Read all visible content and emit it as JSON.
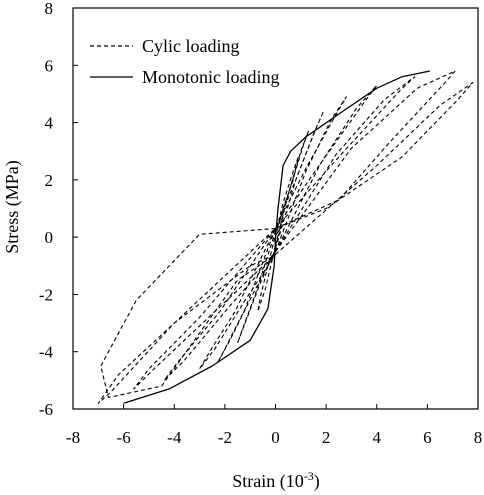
{
  "chart_data": {
    "type": "line",
    "xlabel": "Strain (10",
    "xlabel_sup": "-3",
    "xlabel_close": ")",
    "ylabel": "Stress (MPa)",
    "xlim": [
      -8,
      8
    ],
    "ylim": [
      -6,
      8
    ],
    "xticks": [
      "-8",
      "-6",
      "-4",
      "-2",
      "0",
      "2",
      "4",
      "6",
      "8"
    ],
    "yticks": [
      "-6",
      "-4",
      "-2",
      "0",
      "2",
      "4",
      "6",
      "8"
    ],
    "legend_position": "top-left",
    "series": [
      {
        "name": "Cylic loading",
        "style": "dashed",
        "loops": [
          [
            [
              0,
              0
            ],
            [
              0.3,
              1.0
            ],
            [
              0.7,
              2.0
            ],
            [
              0.9,
              2.8
            ],
            [
              0.7,
              2.3
            ],
            [
              0.3,
              1.2
            ],
            [
              0,
              0.1
            ],
            [
              -0.3,
              -1.0
            ],
            [
              -0.6,
              -2.1
            ],
            [
              -0.7,
              -2.6
            ],
            [
              -0.4,
              -1.8
            ],
            [
              0,
              -0.3
            ],
            [
              0.3,
              0.6
            ],
            [
              0,
              0
            ]
          ],
          [
            [
              0,
              -0.3
            ],
            [
              0.5,
              1.5
            ],
            [
              1.0,
              3.0
            ],
            [
              1.3,
              3.7
            ],
            [
              1.1,
              3.2
            ],
            [
              0.5,
              1.5
            ],
            [
              0,
              0.2
            ],
            [
              -0.8,
              -2.0
            ],
            [
              -1.3,
              -3.2
            ],
            [
              -1.5,
              -3.7
            ],
            [
              -1.2,
              -3.0
            ],
            [
              -0.6,
              -1.6
            ],
            [
              0,
              -0.4
            ]
          ],
          [
            [
              0,
              -0.4
            ],
            [
              0.8,
              2.0
            ],
            [
              1.5,
              3.6
            ],
            [
              1.9,
              4.4
            ],
            [
              1.6,
              3.8
            ],
            [
              0.8,
              2.0
            ],
            [
              0,
              0.3
            ],
            [
              -1.2,
              -2.5
            ],
            [
              -2.0,
              -3.9
            ],
            [
              -2.3,
              -4.4
            ],
            [
              -1.8,
              -3.6
            ],
            [
              -0.9,
              -2.0
            ],
            [
              0,
              -0.5
            ]
          ],
          [
            [
              0,
              -0.5
            ],
            [
              1.2,
              2.3
            ],
            [
              2.2,
              4.1
            ],
            [
              2.8,
              4.9
            ],
            [
              2.4,
              4.3
            ],
            [
              1.2,
              2.4
            ],
            [
              0,
              0.3
            ],
            [
              -1.6,
              -2.6
            ],
            [
              -2.6,
              -4.0
            ],
            [
              -3.0,
              -4.6
            ],
            [
              -2.4,
              -3.9
            ],
            [
              -1.2,
              -2.2
            ],
            [
              0,
              -0.6
            ]
          ],
          [
            [
              0,
              -0.5
            ],
            [
              1.8,
              2.6
            ],
            [
              3.2,
              4.5
            ],
            [
              4.0,
              5.3
            ],
            [
              3.5,
              4.7
            ],
            [
              1.8,
              2.6
            ],
            [
              0,
              0.3
            ],
            [
              -2.2,
              -2.6
            ],
            [
              -3.8,
              -4.3
            ],
            [
              -4.4,
              -5.0
            ],
            [
              -3.6,
              -4.3
            ],
            [
              -1.8,
              -2.4
            ],
            [
              0,
              -0.6
            ]
          ],
          [
            [
              0,
              -0.5
            ],
            [
              2.4,
              2.9
            ],
            [
              4.3,
              4.8
            ],
            [
              5.5,
              5.6
            ],
            [
              4.9,
              5.1
            ],
            [
              2.6,
              2.9
            ],
            [
              0,
              0.3
            ],
            [
              -3.0,
              -2.8
            ],
            [
              -5.0,
              -4.6
            ],
            [
              -5.6,
              -5.3
            ],
            [
              -4.8,
              -4.6
            ],
            [
              -2.4,
              -2.6
            ],
            [
              0,
              -0.6
            ]
          ],
          [
            [
              0,
              -0.5
            ],
            [
              3.0,
              3.1
            ],
            [
              5.6,
              5.2
            ],
            [
              7.1,
              5.8
            ],
            [
              6.6,
              5.3
            ],
            [
              4.5,
              3.3
            ],
            [
              2.5,
              1.3
            ],
            [
              0,
              0.3
            ],
            [
              -4.0,
              -3.0
            ],
            [
              -6.2,
              -4.8
            ],
            [
              -7.0,
              -5.8
            ],
            [
              -6.5,
              -5.4
            ],
            [
              -4.0,
              -3.0
            ],
            [
              -1.0,
              -1.0
            ],
            [
              0,
              -0.6
            ]
          ],
          [
            [
              0,
              -0.6
            ],
            [
              4.0,
              2.5
            ],
            [
              6.5,
              4.6
            ],
            [
              7.8,
              5.4
            ],
            [
              7.2,
              4.8
            ],
            [
              5.0,
              2.8
            ],
            [
              2.0,
              1.0
            ],
            [
              0,
              0.3
            ],
            [
              -3.0,
              0.1
            ],
            [
              -5.5,
              -2.2
            ],
            [
              -6.9,
              -4.5
            ],
            [
              -6.6,
              -5.6
            ],
            [
              -4.5,
              -5.2
            ],
            [
              -1.5,
              -1.5
            ],
            [
              0,
              -0.6
            ]
          ]
        ]
      },
      {
        "name": "Monotonic loading",
        "style": "solid",
        "points": [
          [
            -6.0,
            -5.8
          ],
          [
            -4.2,
            -5.3
          ],
          [
            -2.5,
            -4.5
          ],
          [
            -1.0,
            -3.6
          ],
          [
            -0.3,
            -2.5
          ],
          [
            -0.05,
            -1.0
          ],
          [
            0,
            0
          ],
          [
            0.1,
            1.0
          ],
          [
            0.3,
            2.5
          ],
          [
            0.6,
            3.0
          ],
          [
            1.2,
            3.5
          ],
          [
            2.5,
            4.3
          ],
          [
            4.0,
            5.2
          ],
          [
            5.0,
            5.6
          ],
          [
            6.1,
            5.8
          ]
        ]
      }
    ]
  }
}
